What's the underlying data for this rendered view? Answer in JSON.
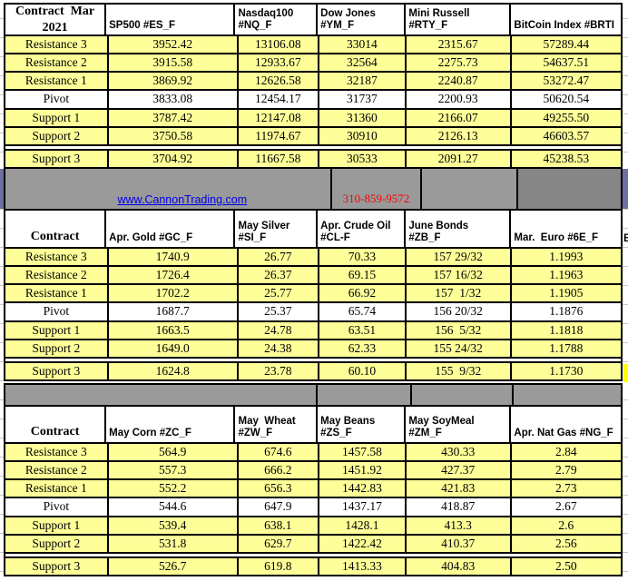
{
  "page": {
    "link": "www.CannonTrading.com",
    "phone": "310-859-9572",
    "partial_next_header": "B"
  },
  "colors": {
    "cell_yellow": "#ffff99",
    "highlight_yellow": "#ffff00",
    "band_gray": "#9a9a9a",
    "band_dark_gray": "#868686",
    "edge_purple": "#6f6f9f",
    "link_blue": "#0000ee",
    "phone_red": "#ff0000",
    "border_black": "#000000"
  },
  "sections": [
    {
      "title_header": "Contract  Mar\n2021",
      "headers": [
        "SP500 #ES_F",
        "Nasdaq100\n#NQ_F",
        "Dow Jones\n#YM_F",
        "Mini Russell\n#RTY_F",
        "BitCoin Index #BRTI"
      ],
      "rows": [
        {
          "label": "Resistance 3",
          "values": [
            "3952.42",
            "13106.08",
            "33014",
            "2315.67",
            "57289.44"
          ]
        },
        {
          "label": "Resistance 2",
          "values": [
            "3915.58",
            "12933.67",
            "32564",
            "2275.73",
            "54637.51"
          ]
        },
        {
          "label": "Resistance 1",
          "values": [
            "3869.92",
            "12626.58",
            "32187",
            "2240.87",
            "53272.47"
          ]
        },
        {
          "label": "Pivot",
          "cls": "white",
          "values": [
            "3833.08",
            "12454.17",
            "31737",
            "2200.93",
            "50620.54"
          ]
        },
        {
          "label": "Support 1",
          "values": [
            "3787.42",
            "12147.08",
            "31360",
            "2166.07",
            "49255.50"
          ]
        },
        {
          "label": "Support 2",
          "cls": "bb",
          "values": [
            "3750.58",
            "11974.67",
            "30910",
            "2126.13",
            "46603.57"
          ]
        },
        {
          "label": "Support 3",
          "cls": "gap",
          "values": [
            "3704.92",
            "11667.58",
            "30533",
            "2091.27",
            "45238.53"
          ]
        }
      ]
    },
    {
      "title_header": "Contract",
      "headers": [
        "Apr. Gold #GC_F",
        "May Silver\n#SI_F",
        "Apr. Crude Oil\n#CL-F",
        "June Bonds\n#ZB_F",
        "Mar.  Euro #6E_F"
      ],
      "rows": [
        {
          "label": "Resistance 3",
          "values": [
            "1740.9",
            "26.77",
            "70.33",
            "157 29/32",
            "1.1993"
          ]
        },
        {
          "label": "Resistance 2",
          "values": [
            "1726.4",
            "26.37",
            "69.15",
            "157 16/32",
            "1.1963"
          ]
        },
        {
          "label": "Resistance 1",
          "values": [
            "1702.2",
            "25.77",
            "66.92",
            "157  1/32",
            "1.1905"
          ]
        },
        {
          "label": "Pivot",
          "cls": "white",
          "values": [
            "1687.7",
            "25.37",
            "65.74",
            "156 20/32",
            "1.1876"
          ]
        },
        {
          "label": "Support 1",
          "values": [
            "1663.5",
            "24.78",
            "63.51",
            "156  5/32",
            "1.1818"
          ]
        },
        {
          "label": "Support 2",
          "cls": "bb",
          "values": [
            "1649.0",
            "24.38",
            "62.33",
            "155 24/32",
            "1.1788"
          ]
        },
        {
          "label": "Support 3",
          "cls": "gap",
          "values": [
            "1624.8",
            "23.78",
            "60.10",
            "155  9/32",
            "1.1730"
          ]
        }
      ]
    },
    {
      "title_header": "Contract",
      "headers": [
        "May Corn #ZC_F",
        "May  Wheat\n#ZW_F",
        "May Beans #ZS_F",
        "May SoyMeal\n#ZM_F",
        "Apr. Nat Gas #NG_F"
      ],
      "rows": [
        {
          "label": "Resistance 3",
          "values": [
            "564.9",
            "674.6",
            "1457.58",
            "430.33",
            "2.84"
          ]
        },
        {
          "label": "Resistance 2",
          "values": [
            "557.3",
            "666.2",
            "1451.92",
            "427.37",
            "2.79"
          ]
        },
        {
          "label": "Resistance 1",
          "values": [
            "552.2",
            "656.3",
            "1442.83",
            "421.83",
            "2.73"
          ]
        },
        {
          "label": "Pivot",
          "cls": "white",
          "values": [
            "544.6",
            "647.9",
            "1437.17",
            "418.87",
            "2.67"
          ]
        },
        {
          "label": "Support 1",
          "values": [
            "539.4",
            "638.1",
            "1428.1",
            "413.3",
            "2.6"
          ]
        },
        {
          "label": "Support 2",
          "cls": "bb",
          "values": [
            "531.8",
            "629.7",
            "1422.42",
            "410.37",
            "2.56"
          ]
        },
        {
          "label": "Support 3",
          "cls": "gap",
          "values": [
            "526.7",
            "619.8",
            "1413.33",
            "404.83",
            "2.50"
          ]
        }
      ]
    }
  ]
}
